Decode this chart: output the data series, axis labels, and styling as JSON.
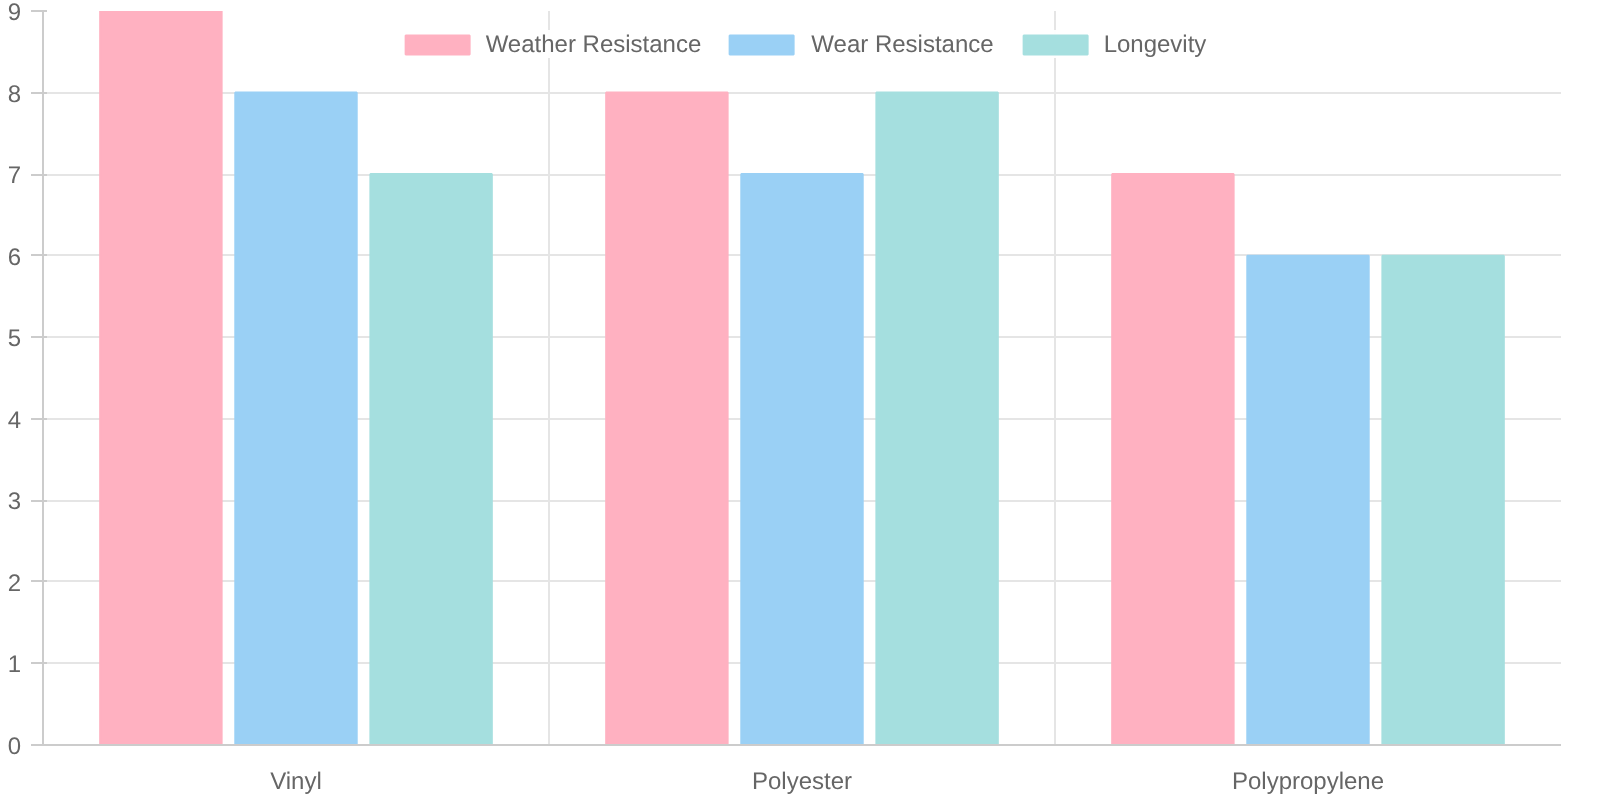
{
  "chart_data": {
    "type": "bar",
    "categories": [
      "Vinyl",
      "Polyester",
      "Polypropylene"
    ],
    "series": [
      {
        "name": "Weather Resistance",
        "color": "#ffb1c1",
        "values": [
          9,
          8,
          7
        ]
      },
      {
        "name": "Wear Resistance",
        "color": "#9ad0f5",
        "values": [
          8,
          7,
          6
        ]
      },
      {
        "name": "Longevity",
        "color": "#a5dfdf",
        "values": [
          7,
          8,
          6
        ]
      }
    ],
    "ylim": [
      0,
      9
    ],
    "yticks": [
      0,
      1,
      2,
      3,
      4,
      5,
      6,
      7,
      8,
      9
    ],
    "grid": true,
    "legend": "top"
  }
}
